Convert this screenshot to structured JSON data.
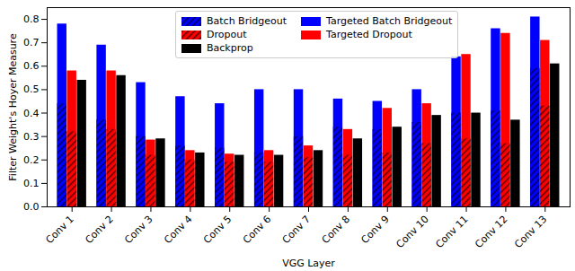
{
  "chart_data": {
    "type": "bar",
    "x_label": "VGG Layer",
    "y_label": "Filter Weight's Hoyer Measure",
    "categories": [
      "Conv 1",
      "Conv 2",
      "Conv 3",
      "Conv 4",
      "Conv 5",
      "Conv 6",
      "Conv 7",
      "Conv 8",
      "Conv 9",
      "Conv 10",
      "Conv 11",
      "Conv 12",
      "Conv 13"
    ],
    "series": [
      {
        "name": "Batch Bridgeout",
        "color": "#0000ff",
        "line_style": "hatched",
        "values": [
          0.44,
          0.37,
          0.3,
          0.26,
          0.25,
          0.23,
          0.3,
          0.34,
          0.33,
          0.36,
          0.4,
          0.41,
          0.59
        ]
      },
      {
        "name": "Dropout",
        "color": "#ff0000",
        "line_style": "hatched",
        "values": [
          0.32,
          0.33,
          0.22,
          0.2,
          0.19,
          0.19,
          0.21,
          0.22,
          0.23,
          0.27,
          0.29,
          0.27,
          0.43
        ]
      },
      {
        "name": "Backprop",
        "color": "#000000",
        "line_style": "solid",
        "values": [
          0.54,
          0.56,
          0.29,
          0.23,
          0.22,
          0.22,
          0.24,
          0.29,
          0.34,
          0.39,
          0.4,
          0.37,
          0.61
        ]
      },
      {
        "name": "Targeted Batch Bridgeout",
        "color": "#0000ff",
        "line_style": "solid",
        "values": [
          0.78,
          0.69,
          0.53,
          0.47,
          0.44,
          0.5,
          0.5,
          0.46,
          0.45,
          0.5,
          0.64,
          0.76,
          0.81
        ]
      },
      {
        "name": "Targeted Dropout",
        "color": "#ff0000",
        "line_style": "solid",
        "values": [
          0.58,
          0.58,
          0.285,
          0.24,
          0.225,
          0.24,
          0.26,
          0.33,
          0.42,
          0.44,
          0.65,
          0.74,
          0.71
        ]
      }
    ],
    "ylim": [
      0,
      0.85
    ],
    "yticks": [
      {
        "value": 0,
        "label": "0.0"
      },
      0.1,
      0.2,
      0.3,
      0.4,
      0.5,
      0.6,
      0.7,
      0.8
    ],
    "grid": false,
    "legend": "upper center"
  }
}
